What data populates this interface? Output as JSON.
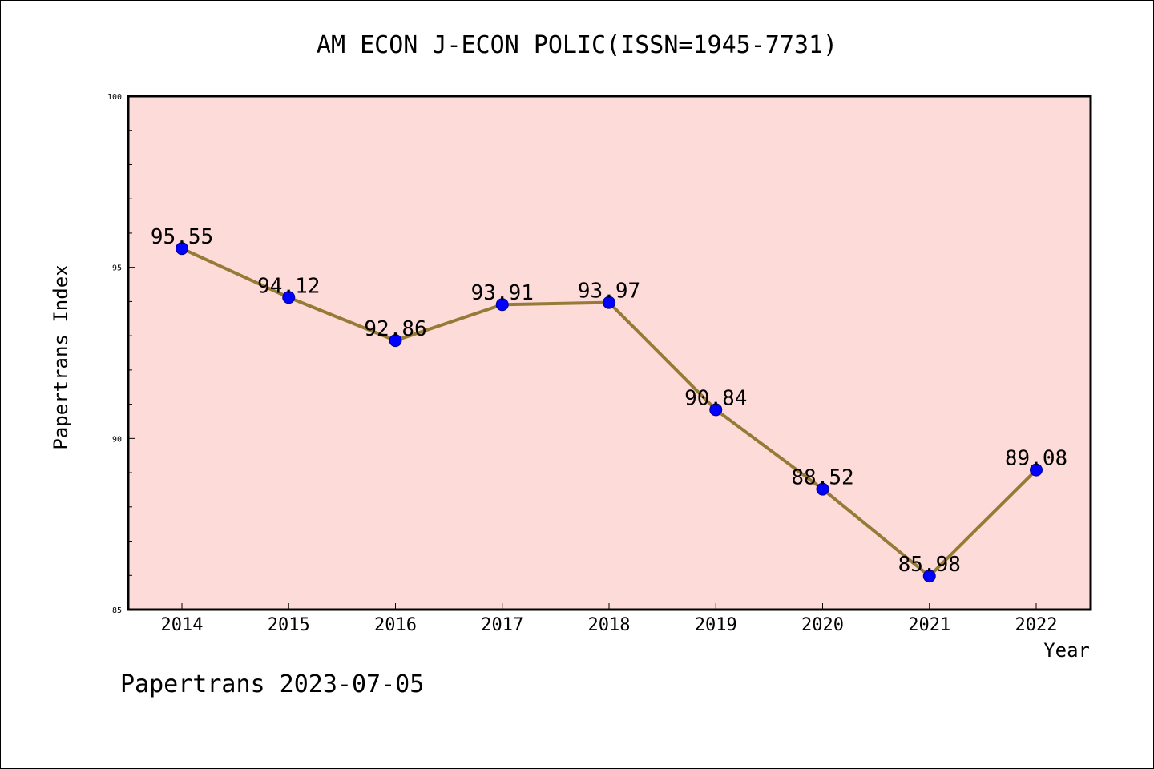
{
  "chart_data": {
    "type": "line",
    "title": "AM ECON J-ECON POLIC(ISSN=1945-7731)",
    "xlabel": "Year",
    "ylabel": "Papertrans Index",
    "categories": [
      "2014",
      "2015",
      "2016",
      "2017",
      "2018",
      "2019",
      "2020",
      "2021",
      "2022"
    ],
    "series": [
      {
        "values": [
          95.55,
          94.12,
          92.86,
          93.91,
          93.97,
          90.84,
          88.52,
          85.98,
          89.08
        ],
        "data_labels": [
          "95.55",
          "94.12",
          "92.86",
          "93.91",
          "93.97",
          "90.84",
          "88.52",
          "85.98",
          "89.08"
        ]
      }
    ],
    "ylim": [
      85,
      100
    ],
    "yticks": [
      "85",
      "90",
      "95",
      "100"
    ],
    "grid": false,
    "legend": "none"
  },
  "footer": "Papertrans 2023-07-05",
  "colors": {
    "plot_background": "#fddbd8",
    "line": "#967a36",
    "marker": "#0000ff",
    "axis": "#000000"
  }
}
